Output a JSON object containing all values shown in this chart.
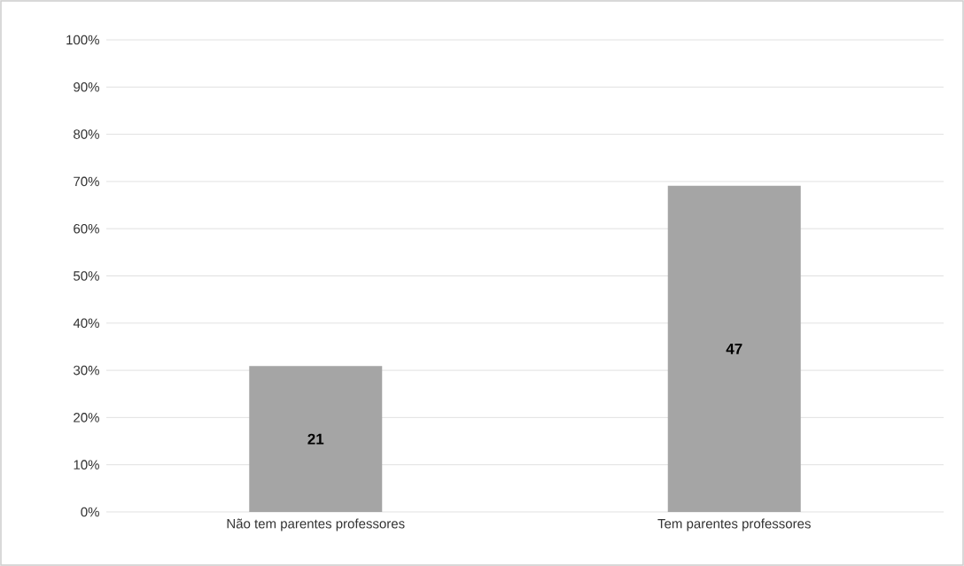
{
  "chart_data": {
    "type": "bar",
    "categories": [
      "Não tem parentes professores",
      "Tem parentes professores"
    ],
    "values": [
      30.9,
      69.1
    ],
    "annotations": [
      "21",
      "47"
    ],
    "color": "#a5a5a5",
    "ylim": [
      0,
      100
    ],
    "yticks": [
      {
        "value": 0,
        "label": "0%"
      },
      {
        "value": 10,
        "label": "10%"
      },
      {
        "value": 20,
        "label": "20%"
      },
      {
        "value": 30,
        "label": "30%"
      },
      {
        "value": 40,
        "label": "40%"
      },
      {
        "value": 50,
        "label": "50%"
      },
      {
        "value": 60,
        "label": "60%"
      },
      {
        "value": 70,
        "label": "70%"
      },
      {
        "value": 80,
        "label": "80%"
      },
      {
        "value": 90,
        "label": "90%"
      },
      {
        "value": 100,
        "label": "100%"
      }
    ],
    "grid": "y"
  }
}
